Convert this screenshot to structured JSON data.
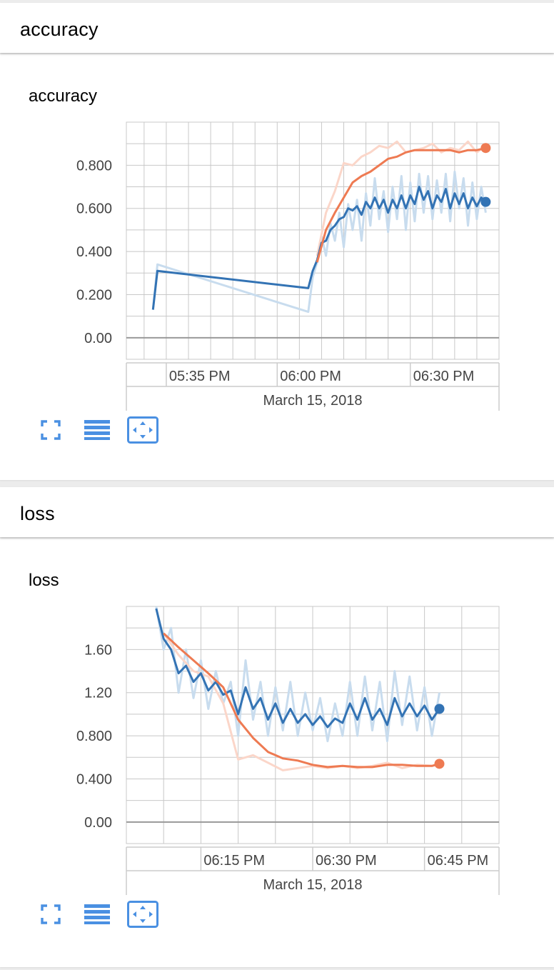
{
  "groups": [
    {
      "header": "accuracy",
      "card_title": "accuracy"
    },
    {
      "header": "loss",
      "card_title": "loss"
    }
  ],
  "controls": {
    "fullscreen_icon": "fullscreen-icon",
    "data_table_icon": "data-table-icon",
    "fit_domain_icon": "fit-domain-icon"
  },
  "colors": {
    "series_blue": "#3373b4",
    "series_blue_raw": "#c8dcee",
    "series_orange": "#ee7a52",
    "series_orange_raw": "#fbd6c9",
    "grid": "#c8c8c8",
    "axis": "#999999",
    "icon_blue": "#4a90e2"
  },
  "chart_data": [
    {
      "type": "line",
      "title": "accuracy",
      "x_axis_type": "time",
      "date_label": "March 15, 2018",
      "xlim": [
        "17:26",
        "18:50"
      ],
      "ylim": [
        -0.1,
        1.0
      ],
      "x_ticks": [
        "05:35 PM",
        "06:00 PM",
        "06:30 PM"
      ],
      "x_tick_times": [
        "17:35",
        "18:00",
        "18:30"
      ],
      "y_ticks": [
        "0.00",
        "0.200",
        "0.400",
        "0.600",
        "0.800"
      ],
      "y_tick_values": [
        0,
        0.2,
        0.4,
        0.6,
        0.8
      ],
      "grid": true,
      "series": [
        {
          "color": "#3373b4",
          "raw": [
            [
              "17:32",
              0.13
            ],
            [
              "17:33",
              0.34
            ],
            [
              "18:07",
              0.12
            ],
            [
              "18:08",
              0.28
            ],
            [
              "18:09",
              0.35
            ],
            [
              "18:10",
              0.47
            ],
            [
              "18:11",
              0.38
            ],
            [
              "18:12",
              0.53
            ],
            [
              "18:13",
              0.45
            ],
            [
              "18:14",
              0.58
            ],
            [
              "18:15",
              0.42
            ],
            [
              "18:16",
              0.62
            ],
            [
              "18:17",
              0.5
            ],
            [
              "18:18",
              0.64
            ],
            [
              "18:19",
              0.45
            ],
            [
              "18:20",
              0.67
            ],
            [
              "18:21",
              0.52
            ],
            [
              "18:22",
              0.74
            ],
            [
              "18:23",
              0.55
            ],
            [
              "18:24",
              0.68
            ],
            [
              "18:25",
              0.49
            ],
            [
              "18:26",
              0.7
            ],
            [
              "18:27",
              0.55
            ],
            [
              "18:28",
              0.75
            ],
            [
              "18:29",
              0.5
            ],
            [
              "18:30",
              0.72
            ],
            [
              "18:31",
              0.54
            ],
            [
              "18:32",
              0.76
            ],
            [
              "18:33",
              0.58
            ],
            [
              "18:34",
              0.75
            ],
            [
              "18:35",
              0.55
            ],
            [
              "18:36",
              0.73
            ],
            [
              "18:37",
              0.58
            ],
            [
              "18:38",
              0.76
            ],
            [
              "18:39",
              0.54
            ],
            [
              "18:40",
              0.77
            ],
            [
              "18:41",
              0.6
            ],
            [
              "18:42",
              0.74
            ],
            [
              "18:43",
              0.52
            ],
            [
              "18:44",
              0.72
            ],
            [
              "18:45",
              0.55
            ],
            [
              "18:46",
              0.7
            ],
            [
              "18:47",
              0.58
            ]
          ],
          "smoothed": [
            [
              "17:32",
              0.13
            ],
            [
              "17:33",
              0.31
            ],
            [
              "18:07",
              0.23
            ],
            [
              "18:08",
              0.31
            ],
            [
              "18:09",
              0.36
            ],
            [
              "18:10",
              0.44
            ],
            [
              "18:11",
              0.45
            ],
            [
              "18:12",
              0.5
            ],
            [
              "18:13",
              0.52
            ],
            [
              "18:14",
              0.55
            ],
            [
              "18:15",
              0.56
            ],
            [
              "18:16",
              0.6
            ],
            [
              "18:17",
              0.59
            ],
            [
              "18:18",
              0.61
            ],
            [
              "18:19",
              0.57
            ],
            [
              "18:20",
              0.63
            ],
            [
              "18:21",
              0.6
            ],
            [
              "18:22",
              0.65
            ],
            [
              "18:23",
              0.6
            ],
            [
              "18:24",
              0.64
            ],
            [
              "18:25",
              0.58
            ],
            [
              "18:26",
              0.64
            ],
            [
              "18:27",
              0.6
            ],
            [
              "18:28",
              0.66
            ],
            [
              "18:29",
              0.6
            ],
            [
              "18:30",
              0.66
            ],
            [
              "18:31",
              0.62
            ],
            [
              "18:32",
              0.7
            ],
            [
              "18:33",
              0.64
            ],
            [
              "18:34",
              0.68
            ],
            [
              "18:35",
              0.6
            ],
            [
              "18:36",
              0.66
            ],
            [
              "18:37",
              0.63
            ],
            [
              "18:38",
              0.69
            ],
            [
              "18:39",
              0.6
            ],
            [
              "18:40",
              0.67
            ],
            [
              "18:41",
              0.62
            ],
            [
              "18:42",
              0.67
            ],
            [
              "18:43",
              0.6
            ],
            [
              "18:44",
              0.65
            ],
            [
              "18:45",
              0.61
            ],
            [
              "18:46",
              0.65
            ],
            [
              "18:47",
              0.63
            ]
          ]
        },
        {
          "color": "#ee7a52",
          "raw": [
            [
              "18:09",
              0.38
            ],
            [
              "18:11",
              0.58
            ],
            [
              "18:13",
              0.68
            ],
            [
              "18:15",
              0.81
            ],
            [
              "18:17",
              0.8
            ],
            [
              "18:19",
              0.84
            ],
            [
              "18:21",
              0.86
            ],
            [
              "18:23",
              0.89
            ],
            [
              "18:25",
              0.88
            ],
            [
              "18:27",
              0.91
            ],
            [
              "18:29",
              0.86
            ],
            [
              "18:31",
              0.87
            ],
            [
              "18:33",
              0.88
            ],
            [
              "18:35",
              0.9
            ],
            [
              "18:37",
              0.86
            ],
            [
              "18:39",
              0.88
            ],
            [
              "18:41",
              0.87
            ],
            [
              "18:43",
              0.91
            ],
            [
              "18:45",
              0.86
            ],
            [
              "18:47",
              0.89
            ]
          ],
          "smoothed": [
            [
              "18:09",
              0.35
            ],
            [
              "18:11",
              0.5
            ],
            [
              "18:13",
              0.58
            ],
            [
              "18:15",
              0.65
            ],
            [
              "18:17",
              0.72
            ],
            [
              "18:19",
              0.75
            ],
            [
              "18:21",
              0.77
            ],
            [
              "18:23",
              0.8
            ],
            [
              "18:25",
              0.83
            ],
            [
              "18:27",
              0.84
            ],
            [
              "18:29",
              0.86
            ],
            [
              "18:31",
              0.87
            ],
            [
              "18:33",
              0.87
            ],
            [
              "18:35",
              0.87
            ],
            [
              "18:37",
              0.87
            ],
            [
              "18:39",
              0.87
            ],
            [
              "18:41",
              0.86
            ],
            [
              "18:43",
              0.87
            ],
            [
              "18:45",
              0.87
            ],
            [
              "18:47",
              0.88
            ]
          ]
        }
      ]
    },
    {
      "type": "line",
      "title": "loss",
      "x_axis_type": "time",
      "date_label": "March 15, 2018",
      "xlim": [
        "18:05",
        "18:55"
      ],
      "ylim": [
        -0.2,
        2.0
      ],
      "x_ticks": [
        "06:15 PM",
        "06:30 PM",
        "06:45 PM"
      ],
      "x_tick_times": [
        "18:15",
        "18:30",
        "18:45"
      ],
      "y_ticks": [
        "0.00",
        "0.400",
        "0.800",
        "1.20",
        "1.60"
      ],
      "y_tick_values": [
        0,
        0.4,
        0.8,
        1.2,
        1.6
      ],
      "grid": true,
      "series": [
        {
          "color": "#3373b4",
          "raw": [
            [
              "18:09",
              2.0
            ],
            [
              "18:10",
              1.6
            ],
            [
              "18:11",
              1.8
            ],
            [
              "18:12",
              1.2
            ],
            [
              "18:13",
              1.6
            ],
            [
              "18:14",
              1.15
            ],
            [
              "18:15",
              1.5
            ],
            [
              "18:16",
              1.05
            ],
            [
              "18:17",
              1.4
            ],
            [
              "18:18",
              1.1
            ],
            [
              "18:19",
              1.3
            ],
            [
              "18:20",
              0.8
            ],
            [
              "18:21",
              1.5
            ],
            [
              "18:22",
              0.95
            ],
            [
              "18:23",
              1.3
            ],
            [
              "18:24",
              0.8
            ],
            [
              "18:25",
              1.25
            ],
            [
              "18:26",
              0.85
            ],
            [
              "18:27",
              1.3
            ],
            [
              "18:28",
              0.8
            ],
            [
              "18:29",
              1.2
            ],
            [
              "18:30",
              0.85
            ],
            [
              "18:31",
              1.15
            ],
            [
              "18:32",
              0.75
            ],
            [
              "18:33",
              1.1
            ],
            [
              "18:34",
              0.8
            ],
            [
              "18:35",
              1.3
            ],
            [
              "18:36",
              0.8
            ],
            [
              "18:37",
              1.35
            ],
            [
              "18:38",
              0.85
            ],
            [
              "18:39",
              1.3
            ],
            [
              "18:40",
              0.75
            ],
            [
              "18:41",
              1.4
            ],
            [
              "18:42",
              0.9
            ],
            [
              "18:43",
              1.35
            ],
            [
              "18:44",
              0.85
            ],
            [
              "18:45",
              1.25
            ],
            [
              "18:46",
              0.8
            ],
            [
              "18:47",
              1.2
            ]
          ],
          "smoothed": [
            [
              "18:09",
              1.98
            ],
            [
              "18:10",
              1.7
            ],
            [
              "18:11",
              1.6
            ],
            [
              "18:12",
              1.38
            ],
            [
              "18:13",
              1.45
            ],
            [
              "18:14",
              1.3
            ],
            [
              "18:15",
              1.38
            ],
            [
              "18:16",
              1.22
            ],
            [
              "18:17",
              1.3
            ],
            [
              "18:18",
              1.18
            ],
            [
              "18:19",
              1.22
            ],
            [
              "18:20",
              1.0
            ],
            [
              "18:21",
              1.25
            ],
            [
              "18:22",
              1.05
            ],
            [
              "18:23",
              1.15
            ],
            [
              "18:24",
              0.95
            ],
            [
              "18:25",
              1.1
            ],
            [
              "18:26",
              0.92
            ],
            [
              "18:27",
              1.05
            ],
            [
              "18:28",
              0.92
            ],
            [
              "18:29",
              1.0
            ],
            [
              "18:30",
              0.9
            ],
            [
              "18:31",
              0.98
            ],
            [
              "18:32",
              0.88
            ],
            [
              "18:33",
              0.96
            ],
            [
              "18:34",
              0.92
            ],
            [
              "18:35",
              1.1
            ],
            [
              "18:36",
              0.95
            ],
            [
              "18:37",
              1.15
            ],
            [
              "18:38",
              0.95
            ],
            [
              "18:39",
              1.05
            ],
            [
              "18:40",
              0.9
            ],
            [
              "18:41",
              1.15
            ],
            [
              "18:42",
              0.98
            ],
            [
              "18:43",
              1.1
            ],
            [
              "18:44",
              0.98
            ],
            [
              "18:45",
              1.08
            ],
            [
              "18:46",
              0.95
            ],
            [
              "18:47",
              1.05
            ]
          ]
        },
        {
          "color": "#ee7a52",
          "raw": [
            [
              "18:10",
              1.75
            ],
            [
              "18:12",
              1.55
            ],
            [
              "18:14",
              1.4
            ],
            [
              "18:16",
              1.35
            ],
            [
              "18:18",
              1.1
            ],
            [
              "18:20",
              0.58
            ],
            [
              "18:22",
              0.62
            ],
            [
              "18:24",
              0.55
            ],
            [
              "18:26",
              0.48
            ],
            [
              "18:28",
              0.5
            ],
            [
              "18:30",
              0.52
            ],
            [
              "18:32",
              0.5
            ],
            [
              "18:34",
              0.52
            ],
            [
              "18:36",
              0.5
            ],
            [
              "18:38",
              0.52
            ],
            [
              "18:40",
              0.55
            ],
            [
              "18:42",
              0.5
            ],
            [
              "18:44",
              0.53
            ],
            [
              "18:46",
              0.52
            ],
            [
              "18:47",
              0.54
            ]
          ],
          "smoothed": [
            [
              "18:10",
              1.75
            ],
            [
              "18:12",
              1.62
            ],
            [
              "18:14",
              1.5
            ],
            [
              "18:16",
              1.38
            ],
            [
              "18:18",
              1.25
            ],
            [
              "18:20",
              0.95
            ],
            [
              "18:22",
              0.78
            ],
            [
              "18:24",
              0.65
            ],
            [
              "18:26",
              0.59
            ],
            [
              "18:28",
              0.57
            ],
            [
              "18:30",
              0.53
            ],
            [
              "18:32",
              0.51
            ],
            [
              "18:34",
              0.52
            ],
            [
              "18:36",
              0.51
            ],
            [
              "18:38",
              0.51
            ],
            [
              "18:40",
              0.53
            ],
            [
              "18:42",
              0.53
            ],
            [
              "18:44",
              0.52
            ],
            [
              "18:46",
              0.52
            ],
            [
              "18:47",
              0.54
            ]
          ]
        }
      ]
    }
  ]
}
